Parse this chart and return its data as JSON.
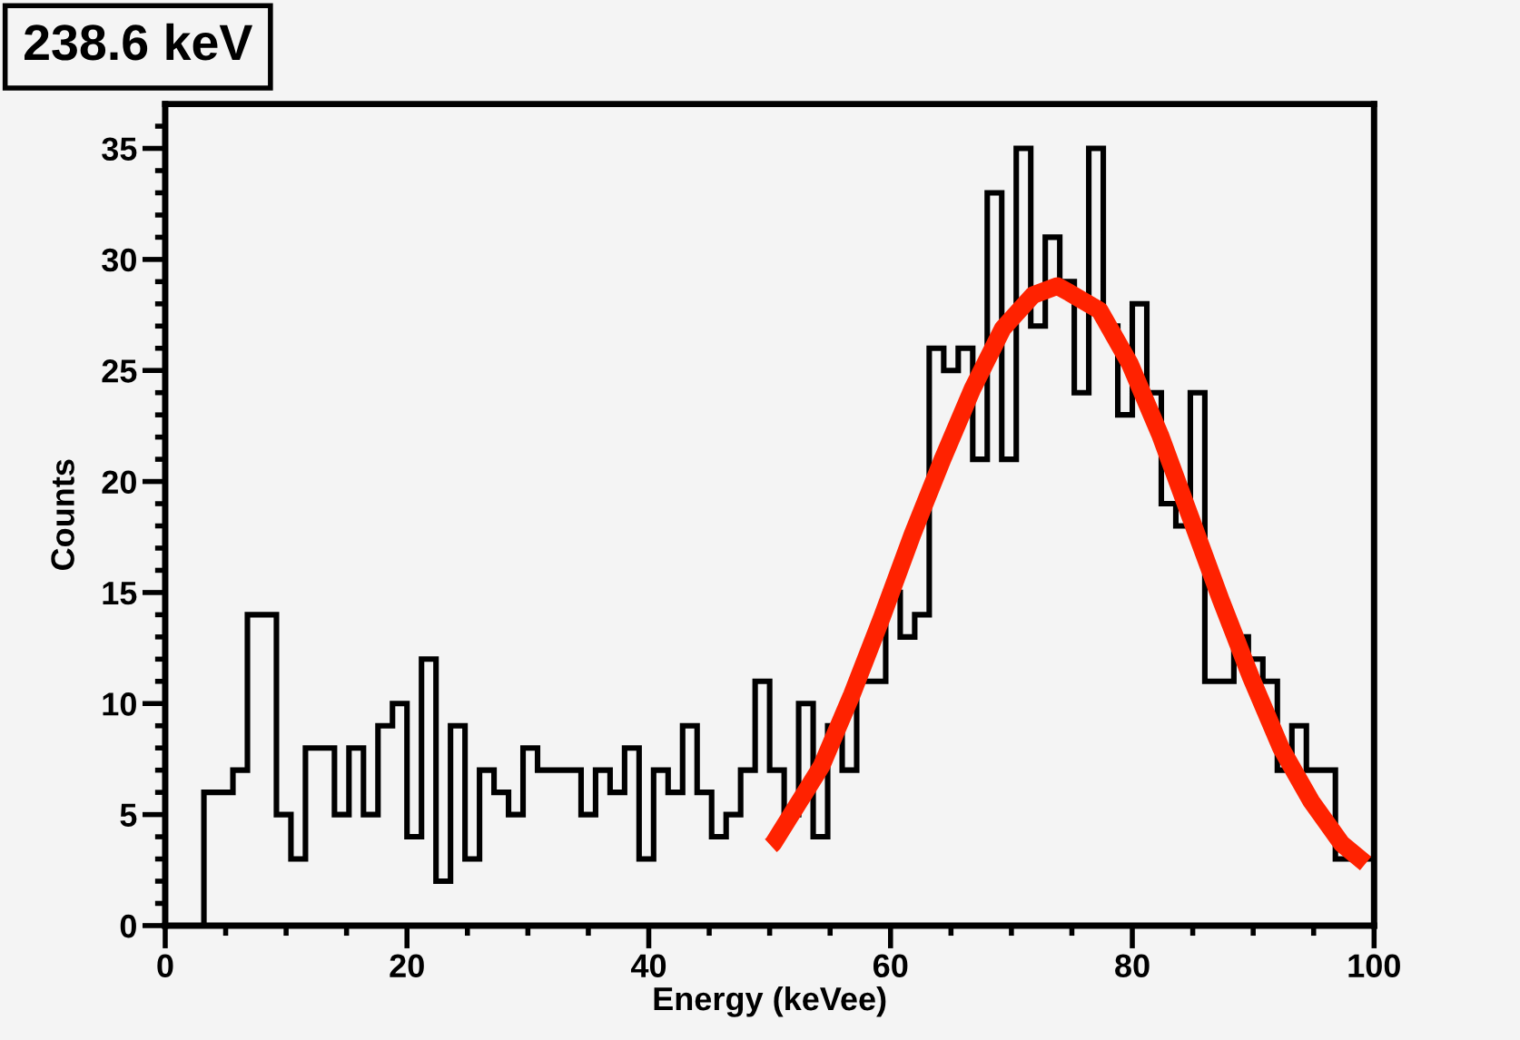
{
  "chart_data": {
    "type": "histogram",
    "title": "238.6 keV",
    "xlabel": "Energy (keVee)",
    "ylabel": "Counts",
    "bins": [
      3.2,
      4.4,
      5.6,
      6.8,
      8.0,
      9.2,
      10.4,
      11.6,
      12.8,
      14.0,
      15.2,
      16.4,
      17.6,
      18.8,
      20.0,
      21.2,
      22.4,
      23.6,
      24.8,
      26.0,
      27.2,
      28.4,
      29.6,
      30.8,
      32.0,
      33.2,
      34.4,
      35.6,
      36.8,
      38.0,
      39.2,
      40.4,
      41.6,
      42.8,
      44.0,
      45.2,
      46.4,
      47.6,
      48.8,
      50.0,
      51.2,
      52.4,
      53.6,
      54.8,
      56.0,
      57.2,
      58.4,
      59.6,
      60.8,
      62.0,
      63.2,
      64.4,
      65.6,
      66.8,
      68.0,
      69.2,
      70.4,
      71.6,
      72.8,
      74.0,
      75.2,
      76.4,
      77.6,
      78.8,
      80.0,
      81.2,
      82.4,
      83.6,
      84.8,
      86.0,
      87.2,
      88.4,
      89.6,
      90.8,
      92.0,
      93.2,
      94.4,
      95.6,
      96.8,
      98.0,
      99.2,
      100
    ],
    "values": [
      6,
      6,
      7,
      14,
      14,
      5,
      3,
      8,
      8,
      5,
      8,
      5,
      9,
      10,
      4,
      12,
      2,
      9,
      3,
      7,
      6,
      5,
      8,
      7,
      7,
      7,
      5,
      7,
      6,
      8,
      3,
      7,
      6,
      9,
      6,
      4,
      5,
      7,
      11,
      7,
      5,
      10,
      4,
      9,
      7,
      11,
      11,
      15,
      13,
      14,
      26,
      25,
      26,
      21,
      33,
      21,
      35,
      27,
      31,
      29,
      24,
      35,
      27,
      23,
      28,
      24,
      19,
      18,
      24,
      11,
      11,
      13,
      12,
      11,
      7,
      9,
      7,
      7,
      3,
      3,
      3
    ],
    "color": "#000000",
    "series": [
      {
        "type": "line",
        "color": "#ff2200",
        "x": [
          50.1,
          50.3,
          54.3,
          56.8,
          59.3,
          61.8,
          64.3,
          66.8,
          69.3,
          71.8,
          73.8,
          74.8,
          77.3,
          79.8,
          82.3,
          84.8,
          87.3,
          89.8,
          92.3,
          94.8,
          97.3,
          99.3
        ],
        "values": [
          3.6,
          3.7,
          7.2,
          10.4,
          13.9,
          17.6,
          21.0,
          24.2,
          26.9,
          28.4,
          28.8,
          28.5,
          27.7,
          25.3,
          22.1,
          18.4,
          14.7,
          11.2,
          8.0,
          5.6,
          3.7,
          2.8
        ]
      }
    ],
    "xlim": [
      0,
      100
    ],
    "ylim": [
      0,
      37
    ],
    "xticks": [
      0,
      {
        "value": 5,
        "label": null
      },
      {
        "value": 10,
        "label": null
      },
      {
        "value": 15,
        "label": null
      },
      20,
      {
        "value": 25,
        "label": null
      },
      {
        "value": 30,
        "label": null
      },
      {
        "value": 35,
        "label": null
      },
      40,
      {
        "value": 45,
        "label": null
      },
      {
        "value": 50,
        "label": null
      },
      {
        "value": 55,
        "label": null
      },
      60,
      {
        "value": 65,
        "label": null
      },
      {
        "value": 70,
        "label": null
      },
      {
        "value": 75,
        "label": null
      },
      80,
      {
        "value": 85,
        "label": null
      },
      {
        "value": 90,
        "label": null
      },
      {
        "value": 95,
        "label": null
      },
      100
    ],
    "yticks": [
      0,
      {
        "value": 1,
        "label": null
      },
      {
        "value": 2,
        "label": null
      },
      {
        "value": 3,
        "label": null
      },
      {
        "value": 4,
        "label": null
      },
      5,
      {
        "value": 6,
        "label": null
      },
      {
        "value": 7,
        "label": null
      },
      {
        "value": 8,
        "label": null
      },
      {
        "value": 9,
        "label": null
      },
      10,
      {
        "value": 11,
        "label": null
      },
      {
        "value": 12,
        "label": null
      },
      {
        "value": 13,
        "label": null
      },
      {
        "value": 14,
        "label": null
      },
      15,
      {
        "value": 16,
        "label": null
      },
      {
        "value": 17,
        "label": null
      },
      {
        "value": 18,
        "label": null
      },
      {
        "value": 19,
        "label": null
      },
      20,
      {
        "value": 21,
        "label": null
      },
      {
        "value": 22,
        "label": null
      },
      {
        "value": 23,
        "label": null
      },
      {
        "value": 24,
        "label": null
      },
      25,
      {
        "value": 26,
        "label": null
      },
      {
        "value": 27,
        "label": null
      },
      {
        "value": 28,
        "label": null
      },
      {
        "value": 29,
        "label": null
      },
      30,
      {
        "value": 31,
        "label": null
      },
      {
        "value": 32,
        "label": null
      },
      {
        "value": 33,
        "label": null
      },
      {
        "value": 34,
        "label": null
      },
      35,
      {
        "value": 36,
        "label": null
      }
    ],
    "grid": false,
    "legend": false
  }
}
